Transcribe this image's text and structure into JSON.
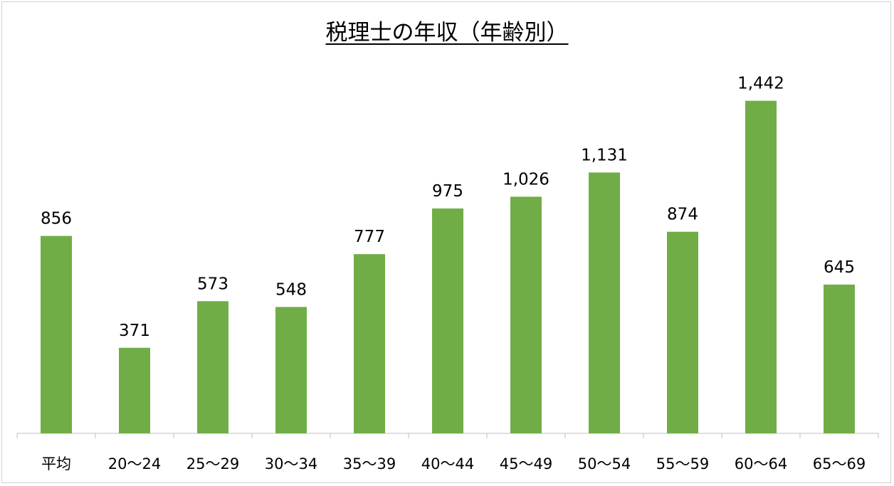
{
  "chart_data": {
    "type": "bar",
    "title": "税理士の年収（年齢別）",
    "categories": [
      "平均",
      "20〜24",
      "25〜29",
      "30〜34",
      "35〜39",
      "40〜44",
      "45〜49",
      "50〜54",
      "55〜59",
      "60〜64",
      "65〜69"
    ],
    "values": [
      856,
      371,
      573,
      548,
      777,
      975,
      1026,
      1131,
      874,
      1442,
      645
    ],
    "value_labels": [
      "856",
      "371",
      "573",
      "548",
      "777",
      "975",
      "1,026",
      "1,131",
      "874",
      "1,442",
      "645"
    ],
    "xlabel": "",
    "ylabel": "",
    "ylim": [
      0,
      1700
    ],
    "grid": false,
    "legend": "none",
    "bar_color": "#70ad47"
  }
}
